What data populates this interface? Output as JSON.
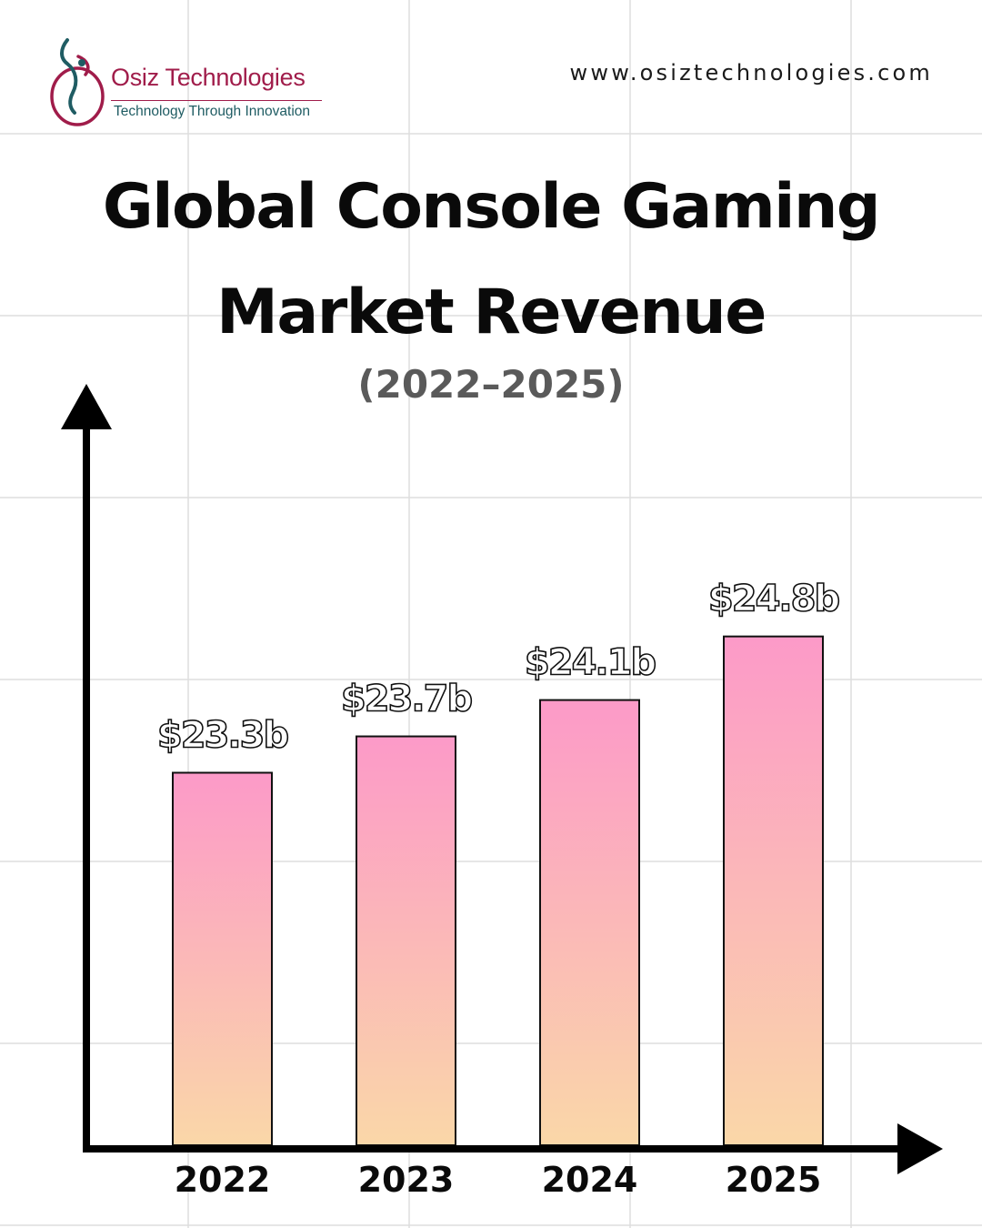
{
  "brand": {
    "name": "Osiz Technologies",
    "tagline": "Technology Through Innovation",
    "website": "www.osiztechnologies.com"
  },
  "title_line1": "Global Console Gaming",
  "title_line2": "Market Revenue",
  "subtitle": "(2022–2025)",
  "colors": {
    "bar_top": "#fc9ac8",
    "bar_bottom": "#fad7a8",
    "axis": "#000000",
    "brand": "#a01c4a",
    "tagline": "#1f5c63"
  },
  "chart_data": {
    "type": "bar",
    "title": "Global Console Gaming Market Revenue",
    "categories": [
      "2022",
      "2023",
      "2024",
      "2025"
    ],
    "values": [
      23.3,
      23.7,
      24.1,
      24.8
    ],
    "value_labels": [
      "$23.3b",
      "$23.7b",
      "$24.1b",
      "$24.8b"
    ],
    "xlabel": "",
    "ylabel": "",
    "unit": "billion USD",
    "ylim": [
      19.2,
      27.5
    ],
    "grid": true
  }
}
